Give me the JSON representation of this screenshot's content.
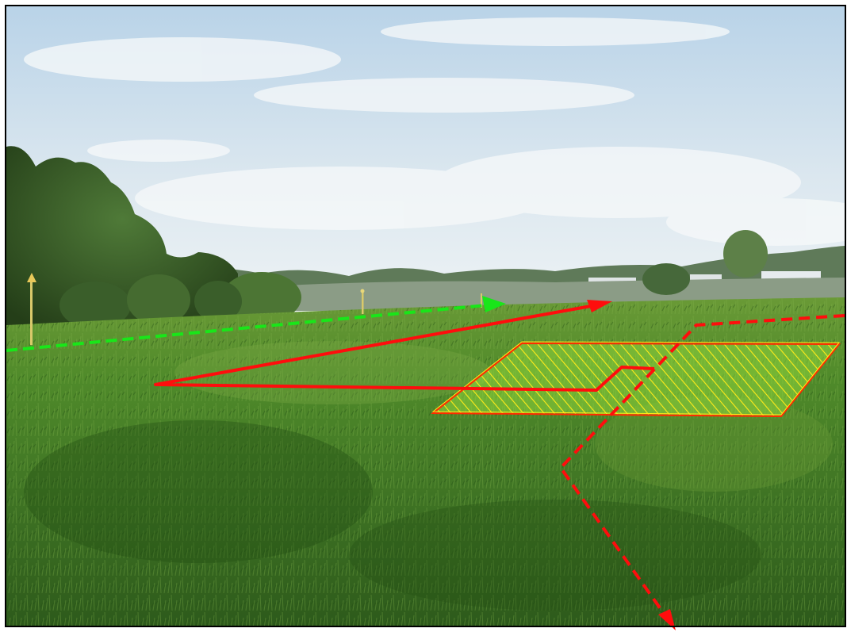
{
  "scene": {
    "subject": "field-photo-with-annotation-overlay",
    "colors": {
      "sky_top": "#b9d3e8",
      "sky_bottom": "#eef3f5",
      "cloud": "#f7f9fa",
      "treeline_far": "#5f7a59",
      "hedgerow": "#8b9c86",
      "trees_dark": "#2e4a22",
      "trees_mid": "#3f6230",
      "grass_far": "#5f8f2f",
      "grass_mid": "#46782a",
      "grass_near": "#2f5c1c",
      "building": "#dfe4e6",
      "post": "#d9c96a",
      "green_route": "#19e619",
      "red_route": "#ff0d0d",
      "hatch_fill": "#8fd63a",
      "hatch_line": "#ffeb1a",
      "hatch_border": "#ff2a00",
      "frame": "#000000"
    },
    "overlays": {
      "green_route_style": "dashed-arrow",
      "red_route_style": "solid-arrow",
      "red_dashed_style": "dashed-arrow",
      "area_style": "hatched-parallelogram"
    }
  }
}
